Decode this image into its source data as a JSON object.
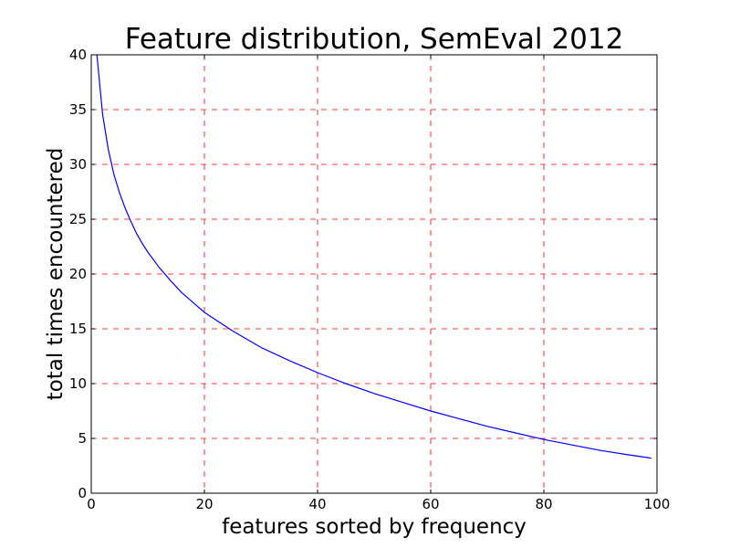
{
  "chart_data": {
    "type": "line",
    "title": "Feature distribution, SemEval 2012",
    "xlabel": "features sorted by frequency",
    "ylabel": "total times encountered",
    "xlim": [
      0,
      100
    ],
    "ylim": [
      0,
      40
    ],
    "x_ticks": [
      0,
      20,
      40,
      60,
      80,
      100
    ],
    "y_ticks": [
      0,
      5,
      10,
      15,
      20,
      25,
      30,
      35,
      40
    ],
    "grid": true,
    "grid_style": "dashed",
    "colors": {
      "line": "#0000ff",
      "grid": "#ff0000",
      "axes": "#000000"
    },
    "series": [
      {
        "x": [
          1,
          2,
          3,
          4,
          5,
          6,
          7,
          8,
          9,
          10,
          12,
          14,
          16,
          18,
          20,
          25,
          30,
          35,
          40,
          45,
          50,
          55,
          60,
          65,
          70,
          75,
          80,
          85,
          90,
          95,
          99
        ],
        "values": [
          40.0,
          34.6,
          31.4,
          29.1,
          27.4,
          26.0,
          24.8,
          23.7,
          22.8,
          22.0,
          20.6,
          19.4,
          18.3,
          17.4,
          16.5,
          14.8,
          13.3,
          12.1,
          11.0,
          10.0,
          9.1,
          8.3,
          7.5,
          6.8,
          6.1,
          5.5,
          4.9,
          4.4,
          3.9,
          3.5,
          3.2
        ]
      }
    ]
  }
}
